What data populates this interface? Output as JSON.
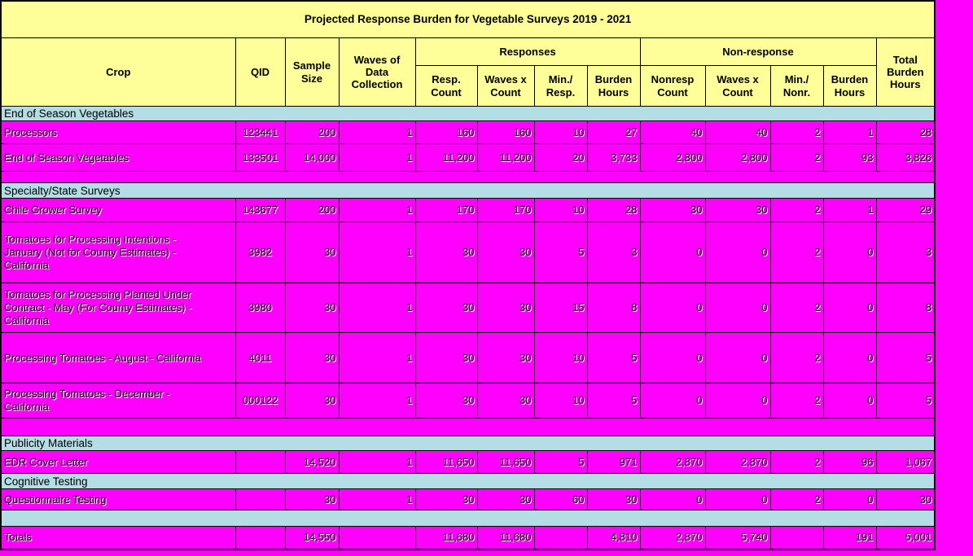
{
  "title": "Projected Response Burden for Vegetable Surveys 2019 - 2021",
  "header": {
    "crop": "Crop",
    "qid": "QID",
    "sample_size": "Sample\nSize",
    "waves": "Waves of\nData\nCollection",
    "responses_group": "Responses",
    "nonresponse_group": "Non-response",
    "resp_count": "Resp.\nCount",
    "resp_waves_x_count": "Waves x\nCount",
    "min_resp": "Min./\nResp.",
    "resp_burden": "Burden\nHours",
    "nonresp_count": "Nonresp\nCount",
    "nonresp_waves_x_count": "Waves x\nCount",
    "min_nonr": "Min./\nNonr.",
    "nonresp_burden": "Burden\nHours",
    "total_burden": "Total\nBurden\nHours"
  },
  "colors": {
    "header_yellow": "#FFFF99",
    "section_blue": "#B5DDE5",
    "cell_magenta": "#FF00FF",
    "border_black": "#000000"
  },
  "rows": [
    {
      "type": "section",
      "label": "End of Season Vegetables"
    },
    {
      "type": "data",
      "crop": "Processors",
      "qid": "123441",
      "sample_size": "200",
      "waves": "1",
      "resp_count": "160",
      "resp_waves_x_count": "160",
      "min_resp": "10",
      "resp_burden": "27",
      "nonresp_count": "40",
      "nonresp_waves_x_count": "40",
      "min_nonr": "2",
      "nonresp_burden": "1",
      "total_burden": "28"
    },
    {
      "type": "data",
      "crop": "End of Season Vegetables",
      "qid": "133501",
      "sample_size": "14,000",
      "waves": "1",
      "resp_count": "11,200",
      "resp_waves_x_count": "11,200",
      "min_resp": "20",
      "resp_burden": "3,733",
      "nonresp_count": "2,800",
      "nonresp_waves_x_count": "2,800",
      "min_nonr": "2",
      "nonresp_burden": "93",
      "total_burden": "3,826"
    },
    {
      "type": "blank"
    },
    {
      "type": "section",
      "label": "Specialty/State Surveys"
    },
    {
      "type": "data",
      "crop": "Chile Grower Survey",
      "qid": "143677",
      "sample_size": "200",
      "waves": "1",
      "resp_count": "170",
      "resp_waves_x_count": "170",
      "min_resp": "10",
      "resp_burden": "28",
      "nonresp_count": "30",
      "nonresp_waves_x_count": "30",
      "min_nonr": "2",
      "nonresp_burden": "1",
      "total_burden": "29"
    },
    {
      "type": "data",
      "crop": "Tomatoes for Processing Intentions -\nJanuary (Not for County Estimates) -\nCalifornia",
      "qid": "3982",
      "sample_size": "30",
      "waves": "1",
      "resp_count": "30",
      "resp_waves_x_count": "30",
      "min_resp": "5",
      "resp_burden": "3",
      "nonresp_count": "0",
      "nonresp_waves_x_count": "0",
      "min_nonr": "2",
      "nonresp_burden": "0",
      "total_burden": "3"
    },
    {
      "type": "data",
      "crop": "Tomatoes for Processing Planted Under\nContract - May (For County Estimates) -\nCalifornia",
      "qid": "3980",
      "sample_size": "30",
      "waves": "1",
      "resp_count": "30",
      "resp_waves_x_count": "30",
      "min_resp": "15",
      "resp_burden": "8",
      "nonresp_count": "0",
      "nonresp_waves_x_count": "0",
      "min_nonr": "2",
      "nonresp_burden": "0",
      "total_burden": "8"
    },
    {
      "type": "data",
      "crop": "Processing Tomatoes - August - California",
      "qid": "4011",
      "sample_size": "30",
      "waves": "1",
      "resp_count": "30",
      "resp_waves_x_count": "30",
      "min_resp": "10",
      "resp_burden": "5",
      "nonresp_count": "0",
      "nonresp_waves_x_count": "0",
      "min_nonr": "2",
      "nonresp_burden": "0",
      "total_burden": "5"
    },
    {
      "type": "data",
      "crop": "Processing Tomatoes - December -\nCalifornia",
      "qid": "000122",
      "sample_size": "30",
      "waves": "1",
      "resp_count": "30",
      "resp_waves_x_count": "30",
      "min_resp": "10",
      "resp_burden": "5",
      "nonresp_count": "0",
      "nonresp_waves_x_count": "0",
      "min_nonr": "2",
      "nonresp_burden": "0",
      "total_burden": "5"
    },
    {
      "type": "blank"
    },
    {
      "type": "section",
      "label": "Publicity Materials"
    },
    {
      "type": "data",
      "crop": "EDR Cover Letter",
      "qid": "",
      "sample_size": "14,520",
      "waves": "1",
      "resp_count": "11,650",
      "resp_waves_x_count": "11,650",
      "min_resp": "5",
      "resp_burden": "971",
      "nonresp_count": "2,870",
      "nonresp_waves_x_count": "2,870",
      "min_nonr": "2",
      "nonresp_burden": "96",
      "total_burden": "1,067"
    },
    {
      "type": "section",
      "label": "Cognitive Testing"
    },
    {
      "type": "data",
      "crop": "Questionnaire Testing",
      "qid": "",
      "sample_size": "30",
      "waves": "1",
      "resp_count": "30",
      "resp_waves_x_count": "30",
      "min_resp": "60",
      "resp_burden": "30",
      "nonresp_count": "0",
      "nonresp_waves_x_count": "0",
      "min_nonr": "2",
      "nonresp_burden": "0",
      "total_burden": "30"
    },
    {
      "type": "blank_section"
    },
    {
      "type": "data",
      "crop": "Totals",
      "qid": "",
      "sample_size": "14,550",
      "waves": "",
      "resp_count": "11,680",
      "resp_waves_x_count": "11,680",
      "min_resp": "",
      "resp_burden": "4,810",
      "nonresp_count": "2,870",
      "nonresp_waves_x_count": "5,740",
      "min_nonr": "",
      "nonresp_burden": "191",
      "total_burden": "5,001"
    }
  ]
}
